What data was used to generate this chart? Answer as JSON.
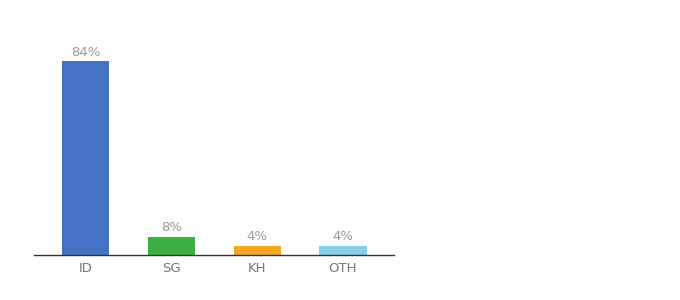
{
  "categories": [
    "ID",
    "SG",
    "KH",
    "OTH"
  ],
  "values": [
    84,
    8,
    4,
    4
  ],
  "bar_colors": [
    "#4472c4",
    "#3cb043",
    "#f5a623",
    "#87ceeb"
  ],
  "labels": [
    "84%",
    "8%",
    "4%",
    "4%"
  ],
  "ylim": [
    0,
    95
  ],
  "background_color": "#ffffff",
  "label_fontsize": 9.5,
  "tick_fontsize": 9.5,
  "label_color": "#999999",
  "tick_color": "#777777",
  "bar_width": 0.55
}
